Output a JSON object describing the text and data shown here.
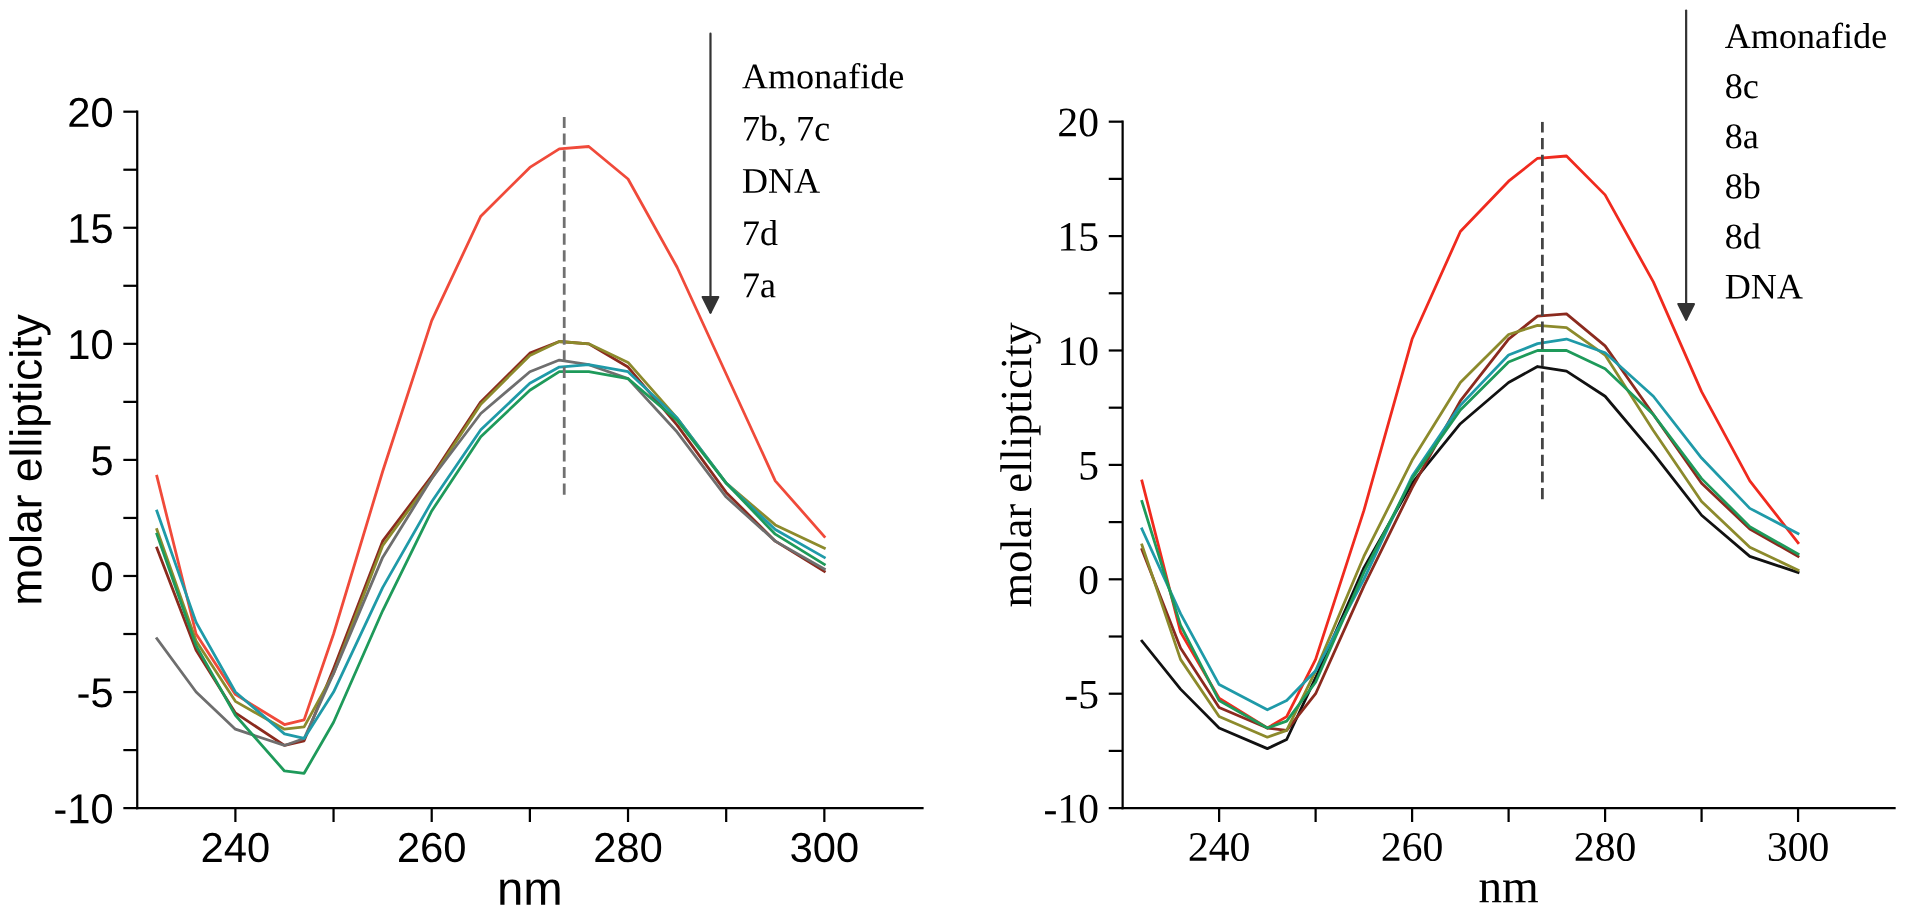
{
  "chart_data": [
    {
      "type": "line",
      "xlabel": "nm",
      "ylabel": "molar ellipticity",
      "x": [
        232,
        236,
        240,
        245,
        247,
        250,
        255,
        260,
        265,
        270,
        273,
        276,
        280,
        285,
        290,
        295,
        300
      ],
      "xlim": [
        230,
        310
      ],
      "ylim": [
        -10,
        20
      ],
      "xticks": [
        240,
        {
          "value": 250,
          "label": null
        },
        260,
        {
          "value": 270,
          "label": null
        },
        280,
        {
          "value": 290,
          "label": null
        },
        300
      ],
      "yticks": [
        -10,
        {
          "value": -7.5,
          "label": null
        },
        -5,
        {
          "value": -2.5,
          "label": null
        },
        0,
        {
          "value": 2.5,
          "label": null
        },
        5,
        {
          "value": 7.5,
          "label": null
        },
        10,
        {
          "value": 12.5,
          "label": null
        },
        15,
        {
          "value": 17.5,
          "label": null
        },
        20
      ],
      "grid": false,
      "legend": false,
      "marker": "none",
      "line_style": "solid",
      "annotations": [
        "Amonafide",
        "7b, 7c",
        "DNA",
        "7d",
        "7a"
      ],
      "series": [
        {
          "color": "#f04a3a",
          "values": [
            4.3,
            -2.5,
            -5.1,
            -6.4,
            -6.2,
            -2.5,
            4.5,
            11.0,
            15.5,
            17.6,
            18.4,
            18.5,
            17.1,
            13.3,
            8.7,
            4.1,
            1.7
          ]
        },
        {
          "color": "#8b2a1e",
          "values": [
            1.2,
            -3.2,
            -5.9,
            -7.3,
            -7.1,
            -4.0,
            1.5,
            4.3,
            7.5,
            9.6,
            10.1,
            10.0,
            9.0,
            6.5,
            3.6,
            1.5,
            0.2
          ]
        },
        {
          "color": "#8c8a2c",
          "values": [
            2.0,
            -2.8,
            -5.4,
            -6.6,
            -6.5,
            -4.2,
            1.3,
            4.2,
            7.4,
            9.5,
            10.1,
            10.0,
            9.2,
            6.8,
            4.0,
            2.2,
            1.2
          ]
        },
        {
          "color": "#6e6e6e",
          "values": [
            -2.7,
            -5.0,
            -6.6,
            -7.3,
            -7.0,
            -4.2,
            0.8,
            4.2,
            7.0,
            8.8,
            9.3,
            9.1,
            8.5,
            6.2,
            3.4,
            1.5,
            0.3
          ]
        },
        {
          "color": "#1f9aa8",
          "values": [
            2.8,
            -2.0,
            -5.0,
            -6.8,
            -7.0,
            -5.0,
            -0.5,
            3.2,
            6.3,
            8.3,
            9.0,
            9.1,
            8.8,
            6.8,
            4.0,
            2.0,
            0.8
          ]
        },
        {
          "color": "#1e9a5a",
          "values": [
            1.8,
            -3.0,
            -6.0,
            -8.4,
            -8.5,
            -6.3,
            -1.5,
            2.8,
            6.0,
            8.0,
            8.8,
            8.8,
            8.5,
            6.7,
            4.0,
            1.8,
            0.5
          ]
        }
      ],
      "ref_lines": [
        {
          "axis": "x",
          "value": 273.5,
          "color": "#707070",
          "line_style": "dashed"
        }
      ]
    },
    {
      "type": "line",
      "xlabel": "nm",
      "ylabel": "molar ellipticity",
      "x": [
        232,
        236,
        240,
        245,
        247,
        250,
        255,
        260,
        265,
        270,
        273,
        276,
        280,
        285,
        290,
        295,
        300
      ],
      "xlim": [
        230,
        310
      ],
      "ylim": [
        -10,
        20
      ],
      "xticks": [
        240,
        {
          "value": 250,
          "label": null
        },
        260,
        {
          "value": 270,
          "label": null
        },
        280,
        {
          "value": 290,
          "label": null
        },
        300
      ],
      "yticks": [
        -10,
        {
          "value": -7.5,
          "label": null
        },
        -5,
        {
          "value": -2.5,
          "label": null
        },
        0,
        {
          "value": 2.5,
          "label": null
        },
        5,
        {
          "value": 7.5,
          "label": null
        },
        10,
        {
          "value": 12.5,
          "label": null
        },
        15,
        {
          "value": 17.5,
          "label": null
        },
        20
      ],
      "grid": false,
      "legend": false,
      "marker": "none",
      "line_style": "solid",
      "annotations": [
        "Amonafide",
        "8c",
        "8a",
        "8b",
        "8d",
        "DNA"
      ],
      "series": [
        {
          "color": "#f02a1e",
          "values": [
            4.3,
            -2.3,
            -5.2,
            -6.5,
            -6.0,
            -3.5,
            3.0,
            10.5,
            15.2,
            17.4,
            18.4,
            18.5,
            16.8,
            13.0,
            8.2,
            4.3,
            1.6
          ]
        },
        {
          "color": "#111111",
          "values": [
            -2.7,
            -4.8,
            -6.5,
            -7.4,
            -7.0,
            -4.3,
            0.5,
            4.2,
            6.8,
            8.6,
            9.3,
            9.1,
            8.0,
            5.5,
            2.8,
            1.0,
            0.3
          ]
        },
        {
          "color": "#8b2a1e",
          "values": [
            1.3,
            -3.0,
            -5.6,
            -6.5,
            -6.6,
            -5.0,
            -0.3,
            4.0,
            7.8,
            10.5,
            11.5,
            11.6,
            10.2,
            7.2,
            4.2,
            2.2,
            1.0
          ]
        },
        {
          "color": "#8c8a2c",
          "values": [
            1.5,
            -3.5,
            -6.0,
            -6.9,
            -6.6,
            -4.0,
            1.0,
            5.2,
            8.6,
            10.7,
            11.1,
            11.0,
            9.8,
            6.5,
            3.4,
            1.4,
            0.4
          ]
        },
        {
          "color": "#1f9aa8",
          "values": [
            2.2,
            -1.5,
            -4.6,
            -5.7,
            -5.3,
            -4.0,
            0.0,
            4.5,
            7.6,
            9.8,
            10.3,
            10.5,
            9.9,
            8.0,
            5.3,
            3.1,
            2.0
          ]
        },
        {
          "color": "#1e9a5a",
          "values": [
            3.4,
            -2.0,
            -5.3,
            -6.5,
            -6.2,
            -4.5,
            0.3,
            4.4,
            7.4,
            9.5,
            10.0,
            10.0,
            9.2,
            7.2,
            4.4,
            2.3,
            1.1
          ]
        }
      ],
      "ref_lines": [
        {
          "axis": "x",
          "value": 273.5,
          "color": "#444444",
          "line_style": "dashed"
        }
      ]
    }
  ]
}
